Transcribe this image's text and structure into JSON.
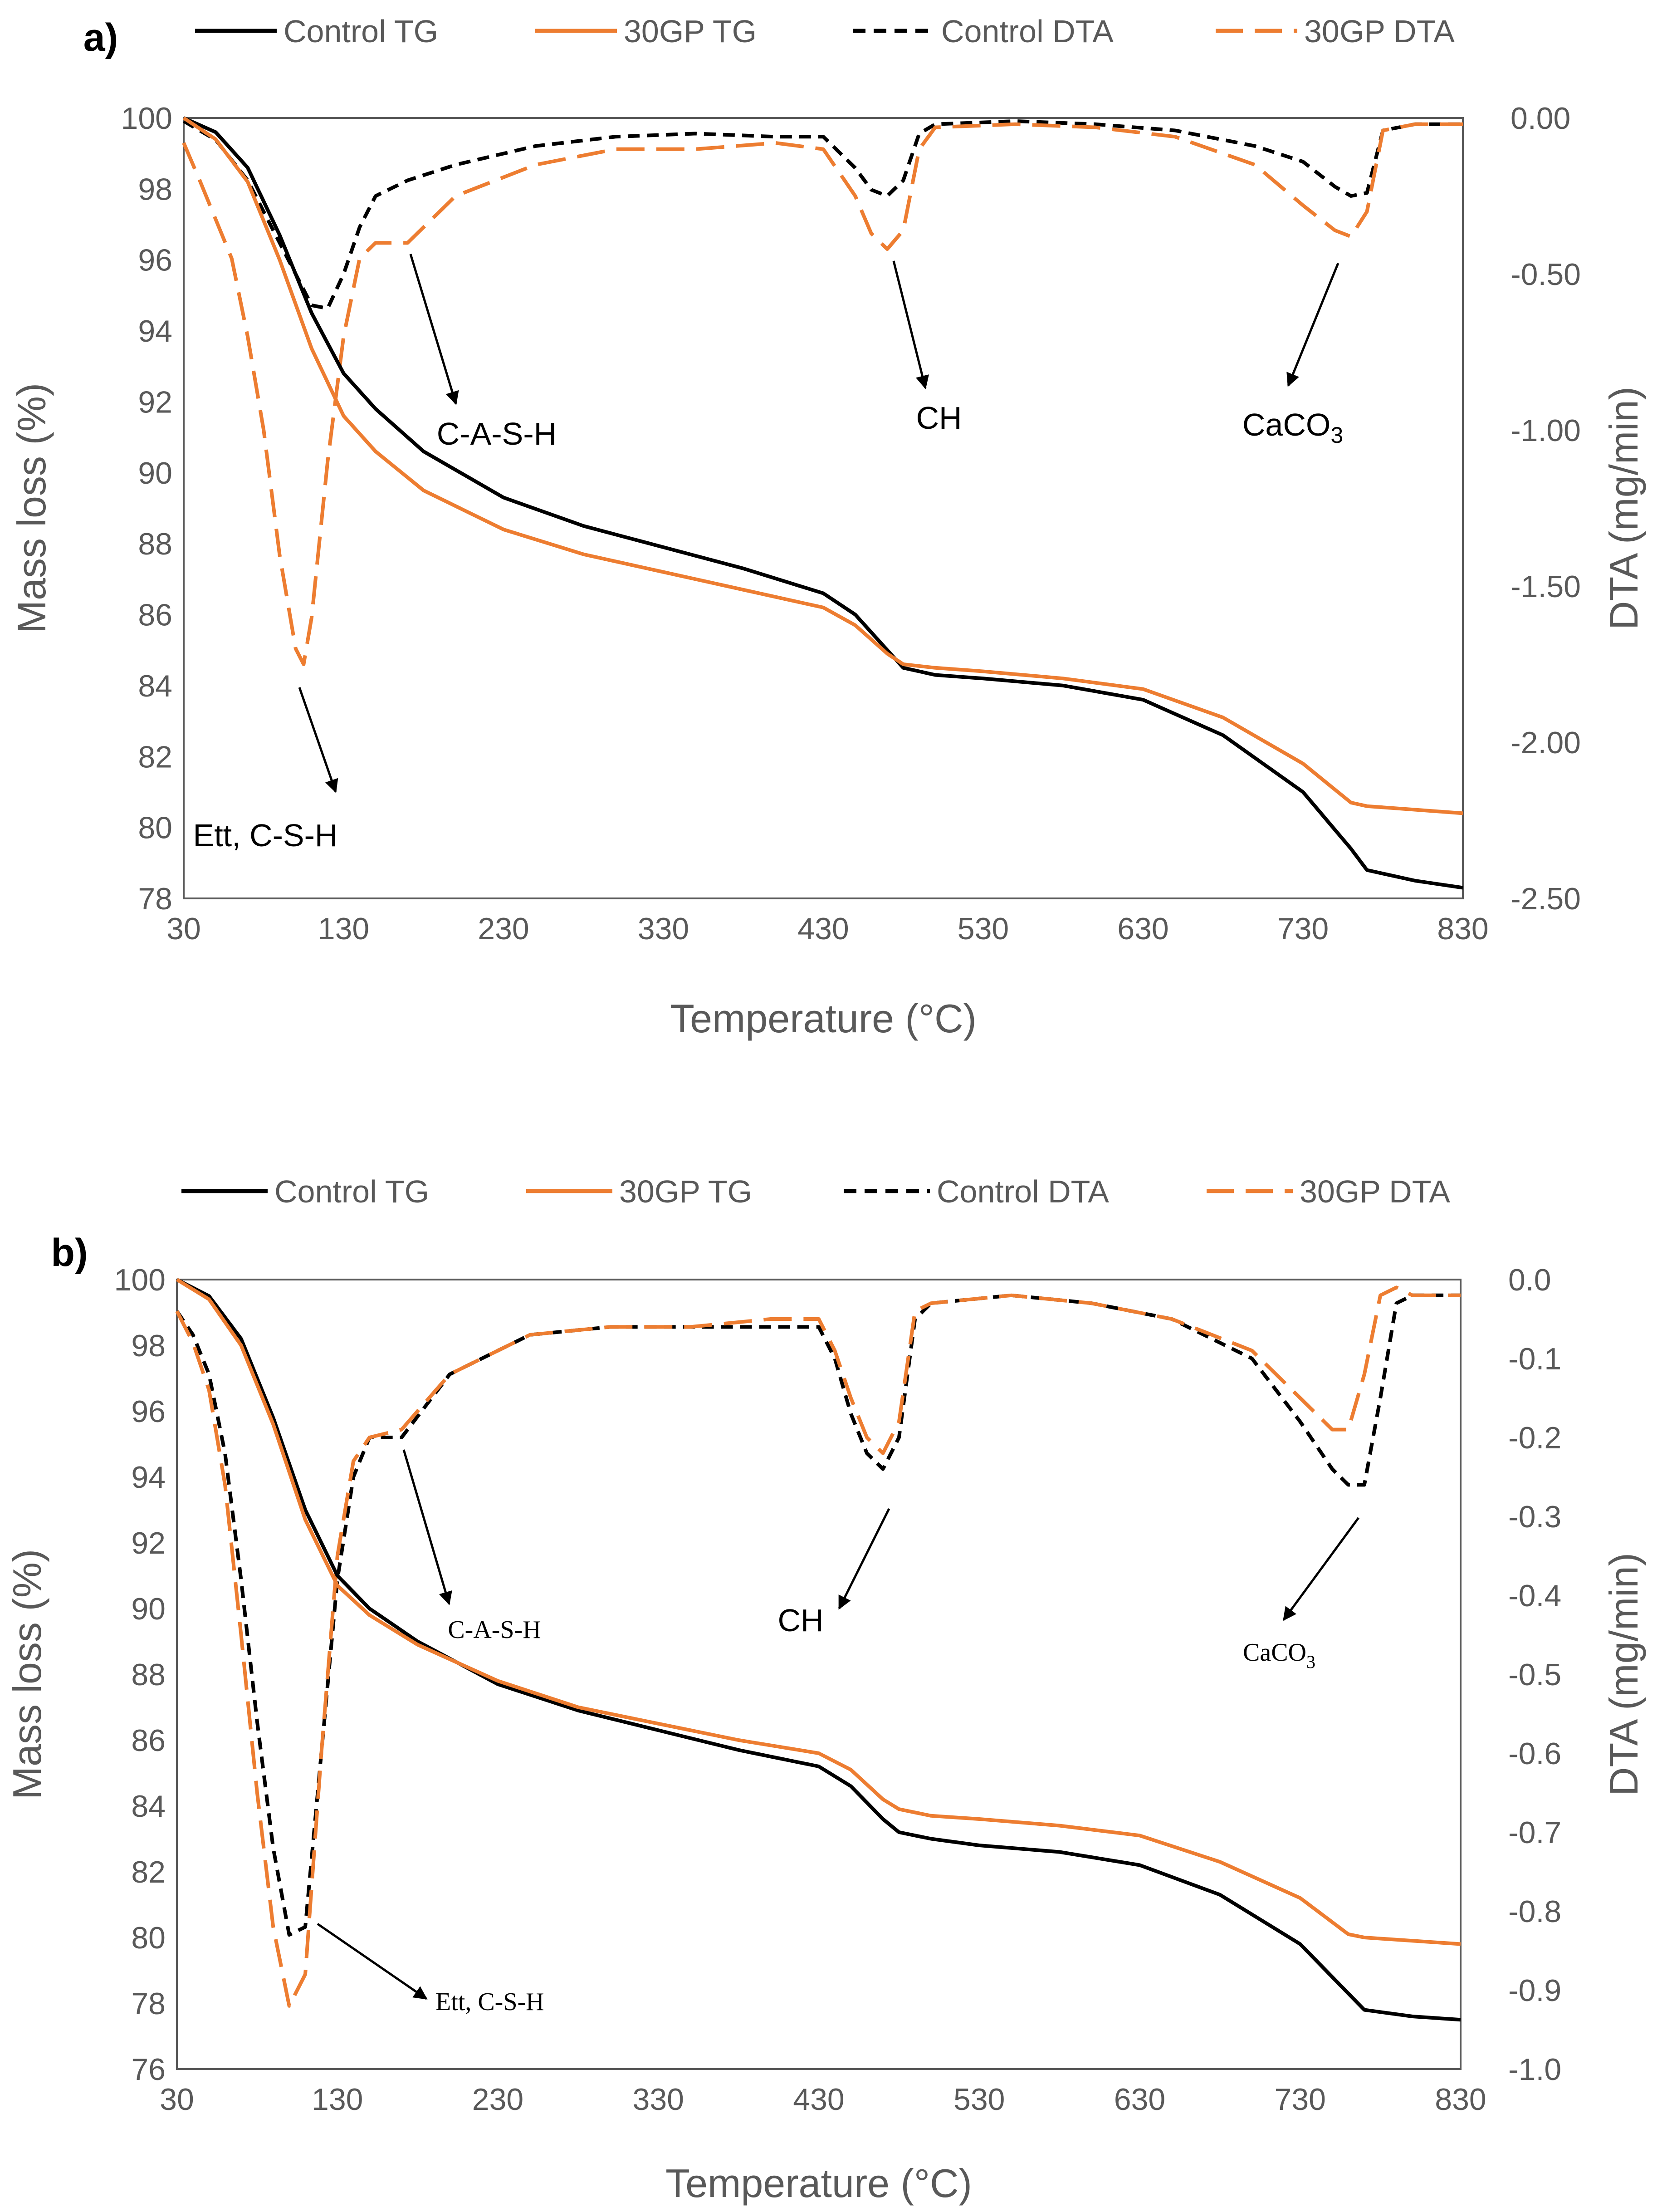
{
  "colors": {
    "control": "#000000",
    "gp": "#ED7D31",
    "axis": "#595959"
  },
  "chart_data": [
    {
      "panel": "a)",
      "type": "line",
      "xlabel": "Temperature (°C)",
      "ylabel": "Mass loss (%)",
      "y2label": "DTA (mg/min)",
      "xlim": [
        30,
        830
      ],
      "ylim": [
        78,
        100
      ],
      "y2lim": [
        -2.5,
        0
      ],
      "xticks": [
        "30",
        "130",
        "230",
        "330",
        "430",
        "530",
        "630",
        "730",
        "830"
      ],
      "yticks": [
        "78",
        "80",
        "82",
        "84",
        "86",
        "88",
        "90",
        "92",
        "94",
        "96",
        "98",
        "100"
      ],
      "y2ticks": [
        "-2.50",
        "-2.00",
        "-1.50",
        "-1.00",
        "-0.50",
        "0.00"
      ],
      "legend": "top",
      "grid": false,
      "series": [
        {
          "name": "Control TG",
          "axis": "left",
          "style": "solid",
          "color": "#000000",
          "x": [
            30,
            50,
            70,
            90,
            110,
            130,
            150,
            180,
            230,
            280,
            330,
            380,
            430,
            450,
            470,
            480,
            500,
            530,
            580,
            630,
            680,
            730,
            760,
            770,
            800,
            830
          ],
          "y": [
            100,
            99.6,
            98.6,
            96.7,
            94.5,
            92.8,
            91.8,
            90.6,
            89.3,
            88.5,
            87.9,
            87.3,
            86.6,
            86.0,
            85.0,
            84.5,
            84.3,
            84.2,
            84.0,
            83.6,
            82.6,
            81.0,
            79.4,
            78.8,
            78.5,
            78.3
          ]
        },
        {
          "name": "30GP TG",
          "axis": "left",
          "style": "solid",
          "color": "#ED7D31",
          "x": [
            30,
            50,
            70,
            90,
            110,
            130,
            150,
            180,
            230,
            280,
            330,
            380,
            430,
            450,
            470,
            480,
            500,
            530,
            580,
            630,
            680,
            730,
            760,
            770,
            800,
            830
          ],
          "y": [
            100,
            99.4,
            98.2,
            96.0,
            93.5,
            91.6,
            90.6,
            89.5,
            88.4,
            87.7,
            87.2,
            86.7,
            86.2,
            85.7,
            84.9,
            84.6,
            84.5,
            84.4,
            84.2,
            83.9,
            83.1,
            81.8,
            80.7,
            80.6,
            80.5,
            80.4
          ]
        },
        {
          "name": "Control DTA",
          "axis": "right",
          "style": "short-dash",
          "color": "#000000",
          "x": [
            30,
            50,
            70,
            90,
            100,
            110,
            120,
            130,
            140,
            150,
            170,
            200,
            250,
            300,
            350,
            400,
            430,
            450,
            460,
            470,
            480,
            490,
            500,
            550,
            600,
            650,
            700,
            730,
            750,
            760,
            770,
            780,
            800,
            830
          ],
          "y": [
            -0.01,
            -0.07,
            -0.2,
            -0.4,
            -0.5,
            -0.6,
            -0.61,
            -0.5,
            -0.35,
            -0.25,
            -0.2,
            -0.15,
            -0.09,
            -0.06,
            -0.05,
            -0.06,
            -0.06,
            -0.16,
            -0.23,
            -0.25,
            -0.2,
            -0.05,
            -0.02,
            -0.01,
            -0.02,
            -0.04,
            -0.09,
            -0.14,
            -0.22,
            -0.25,
            -0.24,
            -0.04,
            -0.02,
            -0.02
          ]
        },
        {
          "name": "30GP DTA",
          "axis": "right",
          "style": "long-dash",
          "color": "#ED7D31",
          "x": [
            30,
            40,
            60,
            70,
            80,
            90,
            100,
            105,
            110,
            120,
            130,
            140,
            150,
            170,
            200,
            250,
            300,
            350,
            400,
            430,
            450,
            460,
            470,
            480,
            490,
            500,
            550,
            600,
            650,
            700,
            730,
            750,
            760,
            770,
            780,
            800,
            830
          ],
          "y": [
            -0.08,
            -0.2,
            -0.45,
            -0.7,
            -1.0,
            -1.4,
            -1.7,
            -1.75,
            -1.6,
            -1.1,
            -0.7,
            -0.45,
            -0.4,
            -0.4,
            -0.25,
            -0.15,
            -0.1,
            -0.1,
            -0.08,
            -0.1,
            -0.25,
            -0.37,
            -0.42,
            -0.36,
            -0.1,
            -0.03,
            -0.02,
            -0.03,
            -0.06,
            -0.15,
            -0.28,
            -0.36,
            -0.38,
            -0.3,
            -0.04,
            -0.02,
            -0.02
          ]
        }
      ],
      "annotations": [
        {
          "text": "Ett, C-S-H",
          "x": 110,
          "y": -1.75
        },
        {
          "text": "C-A-S-H",
          "x": 170,
          "y": -0.4
        },
        {
          "text": "CH",
          "x": 470,
          "y": -0.42
        },
        {
          "text": "CaCO",
          "sub": "3",
          "x": 755,
          "y": -0.38
        }
      ]
    },
    {
      "panel": "b)",
      "type": "line",
      "xlabel": "Temperature (°C)",
      "ylabel": "Mass loss (%)",
      "y2label": "DTA (mg/min)",
      "xlim": [
        30,
        830
      ],
      "ylim": [
        76,
        100
      ],
      "y2lim": [
        -1.0,
        0
      ],
      "xticks": [
        "30",
        "130",
        "230",
        "330",
        "430",
        "530",
        "630",
        "730",
        "830"
      ],
      "yticks": [
        "76",
        "78",
        "80",
        "82",
        "84",
        "86",
        "88",
        "90",
        "92",
        "94",
        "96",
        "98",
        "100"
      ],
      "y2ticks": [
        "-1.0",
        "-0.9",
        "-0.8",
        "-0.7",
        "-0.6",
        "-0.5",
        "-0.4",
        "-0.3",
        "-0.2",
        "-0.1",
        "0.0"
      ],
      "legend": "top",
      "grid": false,
      "series": [
        {
          "name": "Control TG",
          "axis": "left",
          "style": "solid",
          "color": "#000000",
          "x": [
            30,
            50,
            70,
            90,
            110,
            130,
            150,
            180,
            230,
            280,
            330,
            380,
            430,
            450,
            470,
            480,
            500,
            530,
            580,
            630,
            680,
            730,
            760,
            770,
            800,
            830
          ],
          "y": [
            100,
            99.5,
            98.2,
            95.8,
            93.0,
            91.0,
            90.0,
            89.0,
            87.7,
            86.9,
            86.3,
            85.7,
            85.2,
            84.6,
            83.6,
            83.2,
            83.0,
            82.8,
            82.6,
            82.2,
            81.3,
            79.8,
            78.3,
            77.8,
            77.6,
            77.5
          ]
        },
        {
          "name": "30GP TG",
          "axis": "left",
          "style": "solid",
          "color": "#ED7D31",
          "x": [
            30,
            50,
            70,
            90,
            110,
            130,
            150,
            180,
            230,
            280,
            330,
            380,
            430,
            450,
            470,
            480,
            500,
            530,
            580,
            630,
            680,
            730,
            760,
            770,
            800,
            830
          ],
          "y": [
            100,
            99.4,
            98.0,
            95.6,
            92.7,
            90.7,
            89.8,
            88.9,
            87.8,
            87.0,
            86.5,
            86.0,
            85.6,
            85.1,
            84.2,
            83.9,
            83.7,
            83.6,
            83.4,
            83.1,
            82.3,
            81.2,
            80.1,
            80.0,
            79.9,
            79.8
          ]
        },
        {
          "name": "Control DTA",
          "axis": "right",
          "style": "short-dash",
          "color": "#000000",
          "x": [
            30,
            40,
            50,
            60,
            70,
            80,
            90,
            100,
            110,
            120,
            130,
            140,
            150,
            170,
            200,
            250,
            300,
            350,
            400,
            430,
            440,
            450,
            460,
            470,
            480,
            490,
            500,
            550,
            600,
            650,
            700,
            730,
            750,
            760,
            770,
            780,
            790,
            800,
            830
          ],
          "y": [
            -0.04,
            -0.07,
            -0.12,
            -0.22,
            -0.38,
            -0.56,
            -0.72,
            -0.83,
            -0.82,
            -0.6,
            -0.38,
            -0.25,
            -0.2,
            -0.2,
            -0.12,
            -0.07,
            -0.06,
            -0.06,
            -0.06,
            -0.06,
            -0.1,
            -0.17,
            -0.22,
            -0.24,
            -0.2,
            -0.05,
            -0.03,
            -0.02,
            -0.03,
            -0.05,
            -0.1,
            -0.18,
            -0.24,
            -0.26,
            -0.26,
            -0.15,
            -0.03,
            -0.02,
            -0.02
          ]
        },
        {
          "name": "30GP DTA",
          "axis": "right",
          "style": "long-dash",
          "color": "#ED7D31",
          "x": [
            30,
            40,
            50,
            60,
            70,
            80,
            90,
            100,
            110,
            120,
            130,
            140,
            150,
            170,
            200,
            250,
            300,
            350,
            400,
            430,
            440,
            450,
            460,
            470,
            480,
            490,
            500,
            550,
            600,
            650,
            700,
            730,
            750,
            760,
            770,
            780,
            790,
            800,
            830
          ],
          "y": [
            -0.04,
            -0.08,
            -0.14,
            -0.26,
            -0.45,
            -0.65,
            -0.82,
            -0.92,
            -0.88,
            -0.6,
            -0.35,
            -0.23,
            -0.2,
            -0.19,
            -0.12,
            -0.07,
            -0.06,
            -0.06,
            -0.05,
            -0.05,
            -0.09,
            -0.15,
            -0.2,
            -0.22,
            -0.18,
            -0.04,
            -0.03,
            -0.02,
            -0.03,
            -0.05,
            -0.09,
            -0.15,
            -0.19,
            -0.19,
            -0.12,
            -0.02,
            -0.01,
            -0.02,
            -0.02
          ]
        }
      ],
      "annotations": [
        {
          "text": "Ett, C-S-H",
          "x": 115,
          "y": -0.82
        },
        {
          "text": "C-A-S-H",
          "x": 170,
          "y": -0.2
        },
        {
          "text": "CH",
          "x": 470,
          "y": -0.24
        },
        {
          "text": "CaCO",
          "sub": "3",
          "x": 765,
          "y": -0.26
        }
      ]
    }
  ]
}
